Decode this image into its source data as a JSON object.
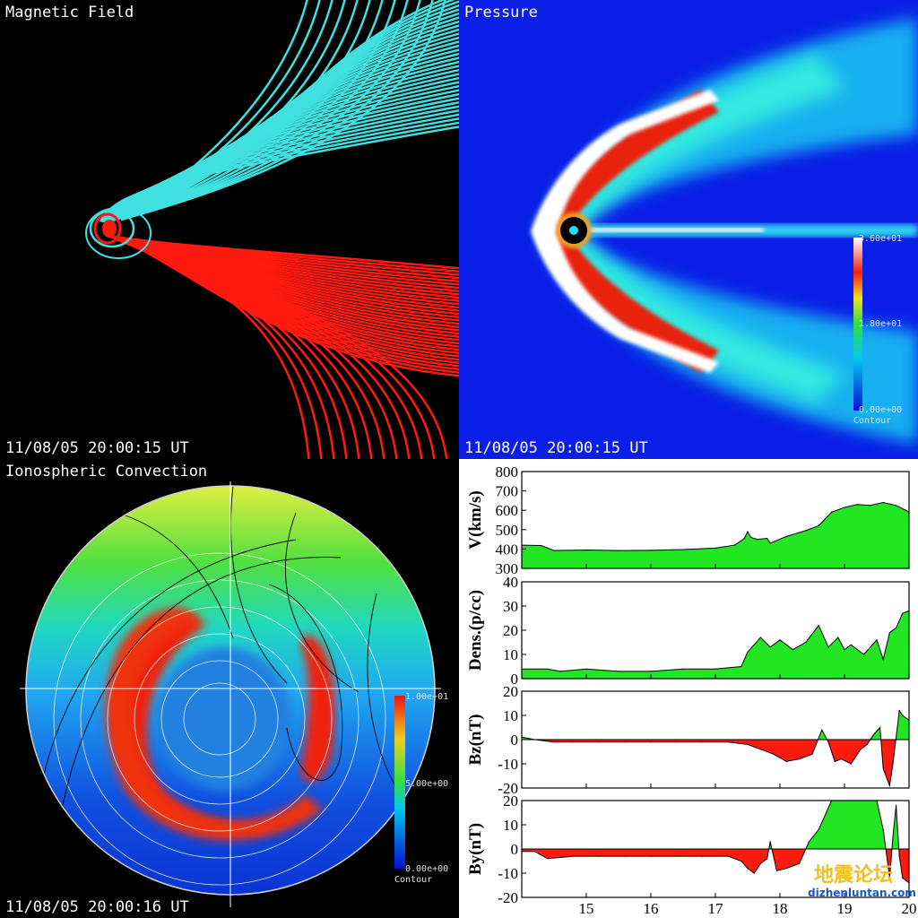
{
  "panels": {
    "magnetic": {
      "title": "Magnetic Field",
      "timestamp": "11/08/05 20:00:15 UT",
      "colors": {
        "north": "#40e0e0",
        "south": "#ff1a10"
      }
    },
    "pressure": {
      "title": "Pressure",
      "timestamp": "11/08/05 20:00:15 UT",
      "colorbar": {
        "max": "3.60e+01",
        "mid": "1.80e+01",
        "min": "0.00e+00",
        "label": "Contour"
      }
    },
    "ionosphere": {
      "title": "Ionospheric Convection",
      "timestamp": "11/08/05 20:00:16 UT",
      "colorbar": {
        "max": "1.00e+01",
        "mid": "5.00e+00",
        "min": "0.00e+00",
        "label": "Contour"
      }
    }
  },
  "watermark": {
    "line1": "地震论坛",
    "line2": "dizhenluntan.com"
  },
  "chart_data": {
    "type": "area",
    "x_ticks": [
      15,
      16,
      17,
      18,
      19,
      20
    ],
    "xlim": [
      14,
      20
    ],
    "colors": {
      "positive": "#22e622",
      "negative": "#ff1a10"
    },
    "panels": [
      {
        "ylabel": "V(km/s)",
        "ylim": [
          300,
          800
        ],
        "yticks": [
          300,
          400,
          500,
          600,
          700,
          800
        ],
        "baseline": 300,
        "x": [
          14,
          14.3,
          14.5,
          15,
          15.5,
          16,
          16.5,
          17,
          17.3,
          17.45,
          17.5,
          17.55,
          17.65,
          17.8,
          17.85,
          18.1,
          18.4,
          18.6,
          18.8,
          19.0,
          19.2,
          19.4,
          19.6,
          19.8,
          19.95,
          20
        ],
        "y": [
          420,
          418,
          392,
          395,
          392,
          393,
          397,
          405,
          420,
          455,
          490,
          460,
          450,
          455,
          430,
          465,
          495,
          520,
          590,
          615,
          630,
          625,
          640,
          625,
          600,
          590
        ]
      },
      {
        "ylabel": "Dens.(p/cc)",
        "ylim": [
          0,
          40
        ],
        "yticks": [
          0,
          10,
          20,
          30,
          40
        ],
        "baseline": 0,
        "x": [
          14,
          14.4,
          14.6,
          15,
          15.5,
          16,
          16.5,
          17,
          17.4,
          17.5,
          17.7,
          17.85,
          18.0,
          18.2,
          18.4,
          18.6,
          18.75,
          18.9,
          19.0,
          19.1,
          19.3,
          19.5,
          19.6,
          19.7,
          19.8,
          19.9,
          20
        ],
        "y": [
          4,
          4,
          3,
          4,
          3,
          3,
          4,
          4,
          5,
          11,
          17,
          13,
          16,
          12,
          15,
          22,
          13,
          17,
          12,
          14,
          10,
          16,
          8,
          19,
          21,
          27,
          28
        ]
      },
      {
        "ylabel": "Bz(nT)",
        "ylim": [
          -20,
          20
        ],
        "yticks": [
          -20,
          -10,
          0,
          10,
          20
        ],
        "baseline": 0,
        "x": [
          14,
          14.2,
          14.5,
          14.8,
          15.2,
          15.6,
          16.0,
          16.4,
          16.8,
          17.2,
          17.5,
          17.7,
          17.9,
          18.1,
          18.3,
          18.5,
          18.65,
          18.75,
          18.85,
          18.95,
          19.1,
          19.25,
          19.35,
          19.45,
          19.55,
          19.6,
          19.7,
          19.75,
          19.85,
          19.9,
          20
        ],
        "y": [
          1,
          0,
          -1,
          -1,
          -1,
          -1,
          -1,
          -1,
          -1,
          -1,
          -2,
          -4,
          -6,
          -9,
          -8,
          -6,
          4,
          -1,
          -9,
          -8,
          -10,
          -4,
          -2,
          2,
          5,
          -12,
          -19,
          -10,
          12,
          10,
          8
        ]
      },
      {
        "ylabel": "By(nT)",
        "ylim": [
          -20,
          20
        ],
        "yticks": [
          -20,
          -10,
          0,
          10,
          20
        ],
        "baseline": 0,
        "x": [
          14,
          14.2,
          14.4,
          14.8,
          15.2,
          15.6,
          16.0,
          16.4,
          16.8,
          17.2,
          17.4,
          17.5,
          17.6,
          17.7,
          17.8,
          17.85,
          17.95,
          18.1,
          18.3,
          18.45,
          18.6,
          18.8,
          19.0,
          19.2,
          19.5,
          19.6,
          19.7,
          19.75,
          19.8,
          19.85,
          19.9,
          20
        ],
        "y": [
          -1,
          -1,
          -4,
          -3,
          -3,
          -3,
          -3,
          -3,
          -3,
          -3,
          -5,
          -8,
          -10,
          -6,
          -4,
          3,
          -9,
          -8,
          -6,
          3,
          8,
          20,
          20,
          20,
          20,
          8,
          -12,
          5,
          18,
          -3,
          -12,
          -14
        ]
      }
    ]
  }
}
